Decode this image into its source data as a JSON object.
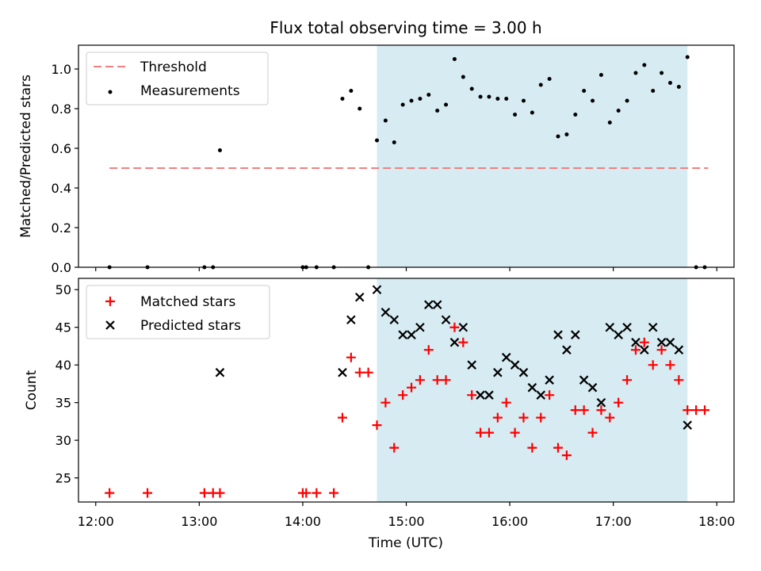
{
  "title": "Flux total observing time = 3.00 h",
  "colors": {
    "threshold": "#f08080",
    "measurement": "#000000",
    "matched": "#ff0000",
    "predicted": "#000000",
    "span": "#add8e6"
  },
  "chart_data": [
    {
      "type": "scatter",
      "ylabel": "Matched/Predicted stars",
      "xlabel": "",
      "ylim": [
        0,
        1.12
      ],
      "yticks": [
        "0.0",
        "0.2",
        "0.4",
        "0.6",
        "0.8",
        "1.0"
      ],
      "shaded_span": [
        "14:43",
        "17:43"
      ],
      "legend": {
        "placement": "top-left",
        "entries": [
          "Threshold",
          "Measurements"
        ]
      },
      "threshold": {
        "name": "Threshold",
        "value": 0.5,
        "x_range": [
          "12:08",
          "17:55"
        ]
      },
      "measurements": {
        "name": "Measurements",
        "x": [
          "12:08",
          "12:30",
          "13:03",
          "13:08",
          "13:12",
          "14:00",
          "14:02",
          "14:08",
          "14:18",
          "14:23",
          "14:28",
          "14:33",
          "14:38",
          "14:43",
          "14:48",
          "14:53",
          "14:58",
          "15:03",
          "15:08",
          "15:13",
          "15:18",
          "15:23",
          "15:28",
          "15:33",
          "15:38",
          "15:43",
          "15:48",
          "15:53",
          "15:58",
          "16:03",
          "16:08",
          "16:13",
          "16:18",
          "16:23",
          "16:28",
          "16:33",
          "16:38",
          "16:43",
          "16:48",
          "16:53",
          "16:58",
          "17:03",
          "17:08",
          "17:13",
          "17:18",
          "17:23",
          "17:28",
          "17:33",
          "17:38",
          "17:43",
          "17:48",
          "17:53"
        ],
        "y": [
          0,
          0,
          0,
          0,
          0.59,
          0,
          0,
          0,
          0,
          0.85,
          0.89,
          0.8,
          0,
          0.64,
          0.74,
          0.63,
          0.82,
          0.84,
          0.85,
          0.87,
          0.79,
          0.82,
          1.05,
          0.96,
          0.9,
          0.86,
          0.86,
          0.85,
          0.85,
          0.77,
          0.84,
          0.78,
          0.92,
          0.95,
          0.66,
          0.67,
          0.77,
          0.89,
          0.84,
          0.97,
          0.73,
          0.79,
          0.84,
          0.98,
          1.02,
          0.89,
          0.98,
          0.93,
          0.91,
          1.06,
          0,
          0
        ]
      }
    },
    {
      "type": "scatter",
      "ylabel": "Count",
      "xlabel": "Time (UTC)",
      "ylim": [
        21.8,
        51.5
      ],
      "yticks": [
        "25",
        "30",
        "35",
        "40",
        "45",
        "50"
      ],
      "xlim": [
        "11:50",
        "18:10"
      ],
      "xticks": [
        "12:00",
        "13:00",
        "14:00",
        "15:00",
        "16:00",
        "17:00",
        "18:00"
      ],
      "shaded_span": [
        "14:43",
        "17:43"
      ],
      "legend": {
        "placement": "top-left",
        "entries": [
          "Matched stars",
          "Predicted stars"
        ]
      },
      "matched": {
        "name": "Matched stars",
        "x": [
          "12:08",
          "12:30",
          "13:03",
          "13:08",
          "13:12",
          "14:00",
          "14:02",
          "14:08",
          "14:18",
          "14:23",
          "14:28",
          "14:33",
          "14:38",
          "14:43",
          "14:48",
          "14:53",
          "14:58",
          "15:03",
          "15:08",
          "15:13",
          "15:18",
          "15:23",
          "15:28",
          "15:33",
          "15:38",
          "15:43",
          "15:48",
          "15:53",
          "15:58",
          "16:03",
          "16:08",
          "16:13",
          "16:18",
          "16:23",
          "16:28",
          "16:33",
          "16:38",
          "16:43",
          "16:48",
          "16:53",
          "16:58",
          "17:03",
          "17:08",
          "17:13",
          "17:18",
          "17:23",
          "17:28",
          "17:33",
          "17:38",
          "17:43",
          "17:48",
          "17:53"
        ],
        "y": [
          23,
          23,
          23,
          23,
          23,
          23,
          23,
          23,
          23,
          33,
          41,
          39,
          39,
          32,
          35,
          29,
          36,
          37,
          38,
          42,
          38,
          38,
          45,
          43,
          36,
          31,
          31,
          33,
          35,
          31,
          33,
          29,
          33,
          36,
          29,
          28,
          34,
          34,
          31,
          34,
          33,
          35,
          38,
          42,
          43,
          40,
          42,
          40,
          38,
          34,
          34,
          34
        ]
      },
      "predicted": {
        "name": "Predicted stars",
        "x": [
          "13:12",
          "14:23",
          "14:28",
          "14:33",
          "14:43",
          "14:48",
          "14:53",
          "14:58",
          "15:03",
          "15:08",
          "15:13",
          "15:18",
          "15:23",
          "15:28",
          "15:33",
          "15:38",
          "15:43",
          "15:48",
          "15:53",
          "15:58",
          "16:03",
          "16:08",
          "16:13",
          "16:18",
          "16:23",
          "16:28",
          "16:33",
          "16:38",
          "16:43",
          "16:48",
          "16:53",
          "16:58",
          "17:03",
          "17:08",
          "17:13",
          "17:18",
          "17:23",
          "17:28",
          "17:33",
          "17:38",
          "17:43"
        ],
        "y": [
          39,
          39,
          46,
          49,
          50,
          47,
          46,
          44,
          44,
          45,
          48,
          48,
          46,
          43,
          45,
          40,
          36,
          36,
          39,
          41,
          40,
          39,
          37,
          36,
          38,
          44,
          42,
          44,
          38,
          37,
          35,
          45,
          44,
          45,
          43,
          42,
          45,
          43,
          43,
          42,
          32
        ]
      }
    }
  ]
}
